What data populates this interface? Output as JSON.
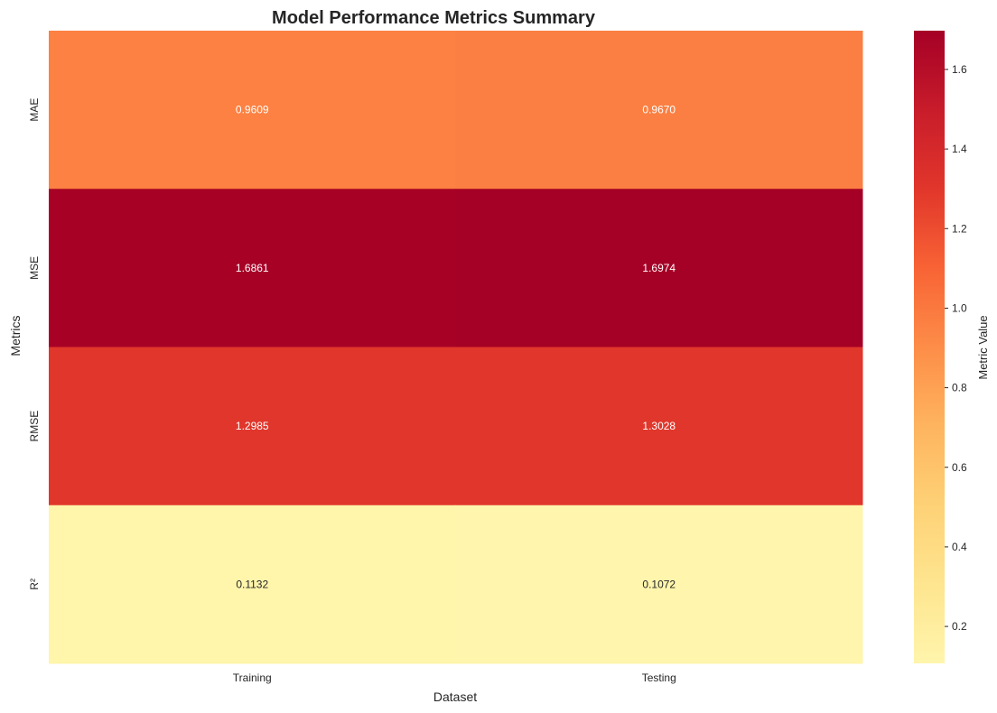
{
  "chart_data": {
    "type": "heatmap",
    "title": "Model Performance Metrics Summary",
    "xlabel": "Dataset",
    "ylabel": "Metrics",
    "x_categories": [
      "Training",
      "Testing"
    ],
    "y_categories": [
      "MAE",
      "MSE",
      "RMSE",
      "R²"
    ],
    "values": [
      [
        0.9609,
        0.967
      ],
      [
        1.6861,
        1.6974
      ],
      [
        1.2985,
        1.3028
      ],
      [
        0.1132,
        0.1072
      ]
    ],
    "value_labels": [
      [
        "0.9609",
        "0.9670"
      ],
      [
        "1.6861",
        "1.6974"
      ],
      [
        "1.2985",
        "1.3028"
      ],
      [
        "0.1132",
        "0.1072"
      ]
    ],
    "colormap": "YlOrRd",
    "colorbar": {
      "label": "Metric Value",
      "range": [
        0.1072,
        1.6974
      ],
      "ticks": [
        0.2,
        0.4,
        0.6,
        0.8,
        1.0,
        1.2,
        1.4,
        1.6
      ],
      "tick_labels": [
        "0.2",
        "0.4",
        "0.6",
        "0.8",
        "1.0",
        "1.2",
        "1.4",
        "1.6"
      ],
      "position": "right"
    },
    "grid": false
  }
}
